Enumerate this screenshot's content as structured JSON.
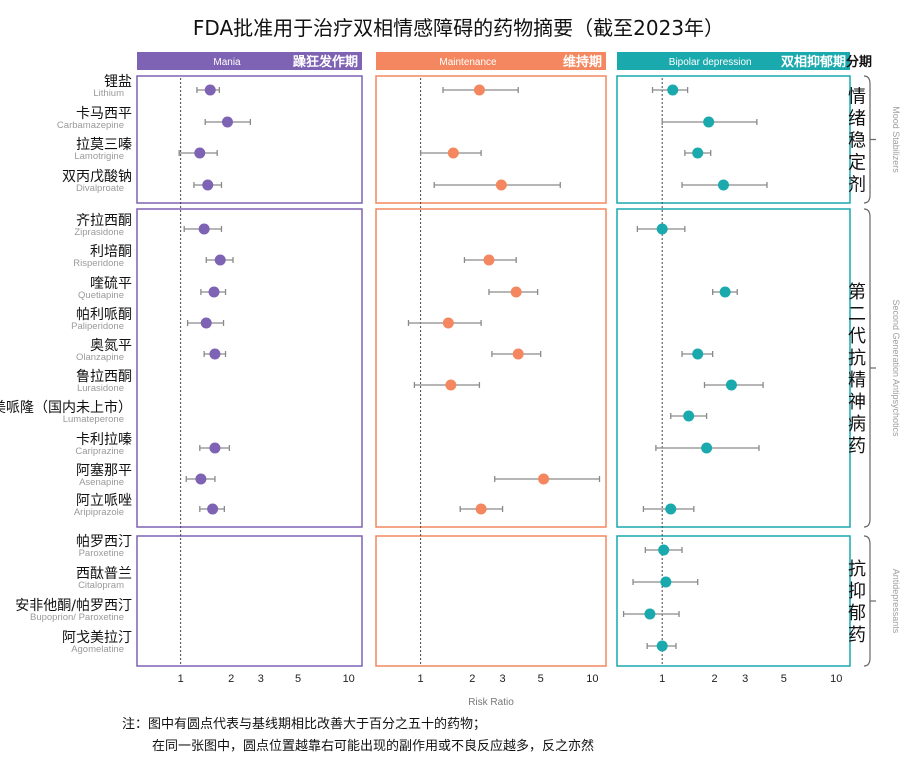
{
  "title": "FDA批准用于治疗双相情感障碍的药物摘要（截至2023年）",
  "chart_data": {
    "type": "scatter",
    "subtype": "forest-plot",
    "xlabel": "Risk Ratio",
    "x_scale": "log",
    "xlim": [
      0.55,
      12
    ],
    "xticks": [
      1,
      2,
      3,
      5,
      10
    ],
    "reference_line": 1,
    "panels": [
      {
        "id": "mania",
        "label_en": "Mania",
        "label_zh": "躁狂发作期",
        "color": "#7e62b3"
      },
      {
        "id": "maintenance",
        "label_en": "Maintenance",
        "label_zh": "维持期",
        "color": "#f4875f"
      },
      {
        "id": "depression",
        "label_en": "Bipolar depression",
        "label_zh": "双相抑郁期",
        "color": "#1aa9ad"
      }
    ],
    "groups": [
      {
        "label_zh": "情绪稳定剂",
        "label_en": "Mood Stabilizers",
        "start": 0,
        "end": 3
      },
      {
        "label_zh": "第二代抗精神病药",
        "label_en": "Second Generation Antipsychotics",
        "start": 4,
        "end": 13
      },
      {
        "label_zh": "抗抑郁药",
        "label_en": "Antidepressants",
        "start": 14,
        "end": 17
      }
    ],
    "drugs": [
      {
        "zh": "锂盐",
        "en": "Lithium",
        "mania": [
          1.5,
          1.25,
          1.7
        ],
        "maintenance": [
          2.2,
          1.35,
          3.7
        ],
        "depression": [
          1.15,
          0.88,
          1.4
        ]
      },
      {
        "zh": "卡马西平",
        "en": "Carbamazepine",
        "mania": [
          1.9,
          1.4,
          2.6
        ],
        "maintenance": null,
        "depression": [
          1.85,
          1.0,
          3.5
        ]
      },
      {
        "zh": "拉莫三嗪",
        "en": "Lamotrigine",
        "mania": [
          1.3,
          0.98,
          1.65
        ],
        "maintenance": [
          1.55,
          1.0,
          2.25
        ],
        "depression": [
          1.6,
          1.35,
          1.9
        ]
      },
      {
        "zh": "双丙戊酸钠",
        "en": "Divalproate",
        "mania": [
          1.45,
          1.2,
          1.75
        ],
        "maintenance": [
          2.95,
          1.2,
          6.5
        ],
        "depression": [
          2.25,
          1.3,
          4.0
        ]
      },
      {
        "zh": "齐拉西酮",
        "en": "Ziprasidone",
        "mania": [
          1.38,
          1.05,
          1.75
        ],
        "maintenance": null,
        "depression": [
          1.0,
          0.72,
          1.35
        ]
      },
      {
        "zh": "利培酮",
        "en": "Risperidone",
        "mania": [
          1.72,
          1.42,
          2.05
        ],
        "maintenance": [
          2.5,
          1.8,
          3.6
        ],
        "depression": null
      },
      {
        "zh": "喹硫平",
        "en": "Quetiapine",
        "mania": [
          1.58,
          1.32,
          1.85
        ],
        "maintenance": [
          3.6,
          2.5,
          4.8
        ],
        "depression": [
          2.3,
          1.95,
          2.7
        ]
      },
      {
        "zh": "帕利哌酮",
        "en": "Paliperidone",
        "mania": [
          1.42,
          1.1,
          1.8
        ],
        "maintenance": [
          1.45,
          0.85,
          2.25
        ],
        "depression": null
      },
      {
        "zh": "奥氮平",
        "en": "Olanzapine",
        "mania": [
          1.6,
          1.38,
          1.85
        ],
        "maintenance": [
          3.7,
          2.6,
          5.0
        ],
        "depression": [
          1.6,
          1.3,
          1.95
        ]
      },
      {
        "zh": "鲁拉西酮",
        "en": "Lurasidone",
        "mania": null,
        "maintenance": [
          1.5,
          0.92,
          2.2
        ],
        "depression": [
          2.5,
          1.75,
          3.8
        ]
      },
      {
        "zh": "卢美哌隆（国内未上市）",
        "en": "Lumateperone",
        "mania": null,
        "maintenance": null,
        "depression": [
          1.42,
          1.12,
          1.8
        ]
      },
      {
        "zh": "卡利拉嗪",
        "en": "Cariprazine",
        "mania": [
          1.6,
          1.3,
          1.95
        ],
        "maintenance": null,
        "depression": [
          1.8,
          0.92,
          3.6
        ]
      },
      {
        "zh": "阿塞那平",
        "en": "Asenapine",
        "mania": [
          1.32,
          1.08,
          1.6
        ],
        "maintenance": [
          5.2,
          2.7,
          11.0
        ],
        "depression": null
      },
      {
        "zh": "阿立哌唑",
        "en": "Aripiprazole",
        "mania": [
          1.55,
          1.3,
          1.82
        ],
        "maintenance": [
          2.25,
          1.7,
          3.0
        ],
        "depression": [
          1.12,
          0.78,
          1.52
        ]
      },
      {
        "zh": "帕罗西汀",
        "en": "Paroxetine",
        "mania": null,
        "maintenance": null,
        "depression": [
          1.02,
          0.8,
          1.3
        ]
      },
      {
        "zh": "西酞普兰",
        "en": "Citalopram",
        "mania": null,
        "maintenance": null,
        "depression": [
          1.05,
          0.68,
          1.6
        ]
      },
      {
        "zh": "安非他酮/帕罗西汀",
        "en": "Bupoprion/ Paroxetine",
        "mania": null,
        "maintenance": null,
        "depression": [
          0.85,
          0.6,
          1.25
        ]
      },
      {
        "zh": "阿戈美拉汀",
        "en": "Agomelatine",
        "mania": null,
        "maintenance": null,
        "depression": [
          1.0,
          0.82,
          1.2
        ]
      }
    ]
  },
  "notes": [
    "注：图中有圆点代表与基线期相比改善大于百分之五十的药物；",
    "在同一张图中，圆点位置越靠右可能出现的副作用或不良反应越多，反之亦然"
  ]
}
